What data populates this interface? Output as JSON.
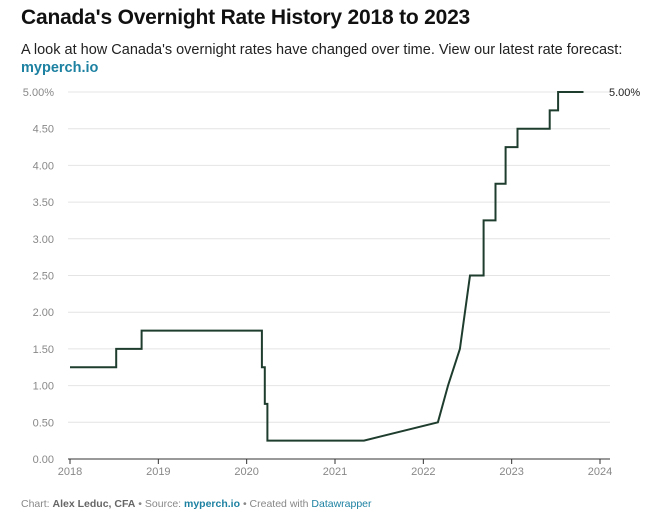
{
  "header": {
    "title": "Canada's Overnight Rate History 2018 to 2023",
    "subtitle": "A look at how Canada's overnight rates have changed over time. View our latest rate forecast:",
    "subtitle_link": "myperch.io"
  },
  "footer": {
    "chart_prefix": "Chart: ",
    "author": "Alex Leduc, CFA",
    "source_prefix": " • Source: ",
    "source": "myperch.io",
    "created_prefix": " • Created with ",
    "tool": "Datawrapper"
  },
  "colors": {
    "line": "#1f3d2e",
    "link": "#1d81a2",
    "grid": "#e4e4e4"
  },
  "chart_data": {
    "type": "line",
    "title": "Canada's Overnight Rate History 2018 to 2023",
    "xlabel": "",
    "ylabel": "",
    "xlim": [
      2018,
      2024
    ],
    "ylim": [
      0,
      5
    ],
    "x_ticks": [
      "2018",
      "2019",
      "2020",
      "2021",
      "2022",
      "2023",
      "2024"
    ],
    "y_ticks": [
      "0.00",
      "0.50",
      "1.00",
      "1.50",
      "2.00",
      "2.50",
      "3.00",
      "3.50",
      "4.00",
      "4.50",
      "5.00%"
    ],
    "grid": true,
    "end_label": "5.00%",
    "series": [
      {
        "x": [
          "2018-01-01",
          "2018-01-17",
          "2018-07-11",
          "2018-10-24",
          "2020-03-04",
          "2020-03-16",
          "2020-03-27",
          "2021-05-01",
          "2022-03-02",
          "2022-04-13",
          "2022-06-01",
          "2022-07-13",
          "2022-09-07",
          "2022-10-26",
          "2022-12-07",
          "2023-01-25",
          "2023-06-07",
          "2023-07-12",
          "2023-10-25"
        ],
        "y": [
          1.25,
          1.25,
          1.5,
          1.75,
          1.25,
          0.75,
          0.25,
          0.25,
          0.5,
          1.0,
          1.5,
          2.5,
          3.25,
          3.75,
          4.25,
          4.5,
          4.75,
          5.0,
          5.0
        ],
        "step": [
          false,
          false,
          true,
          true,
          true,
          true,
          true,
          false,
          false,
          false,
          false,
          false,
          true,
          true,
          true,
          true,
          true,
          true,
          true
        ]
      }
    ]
  }
}
